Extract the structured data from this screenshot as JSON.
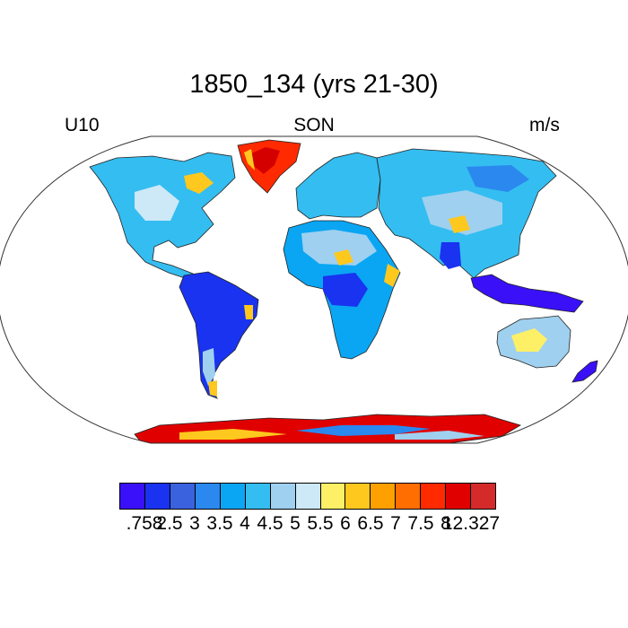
{
  "figure": {
    "title": "1850_134 (yrs 21-30)",
    "left_label": "U10",
    "center_label": "SON",
    "right_label": "m/s"
  },
  "colorbar": {
    "colors": [
      "#3a10f8",
      "#1933f0",
      "#3b62de",
      "#2a88ef",
      "#0aa6f3",
      "#34bdf0",
      "#9fd0ef",
      "#cde8f7",
      "#fef066",
      "#fec81e",
      "#fda000",
      "#fe6e00",
      "#ff2a00",
      "#e00000",
      "#d42a2a"
    ],
    "labels": [
      ".758",
      "2.5",
      "3",
      "3.5",
      "4",
      "4.5",
      "5",
      "5.5",
      "6",
      "6.5",
      "7",
      "7.5",
      "8",
      "12.327"
    ]
  },
  "map": {
    "projection": "Robinson (global)",
    "variable": "10 m wind speed",
    "continent_colors": {
      "north_america": "#34bdf0",
      "greenland": "#ff2a00",
      "south_america": "#1933f0",
      "europe": "#34bdf0",
      "africa": "#0aa6f3",
      "asia": "#34bdf0",
      "australia": "#9fd0ef",
      "maritime_continent": "#3a10f8",
      "antarctica": "#e00000"
    }
  }
}
